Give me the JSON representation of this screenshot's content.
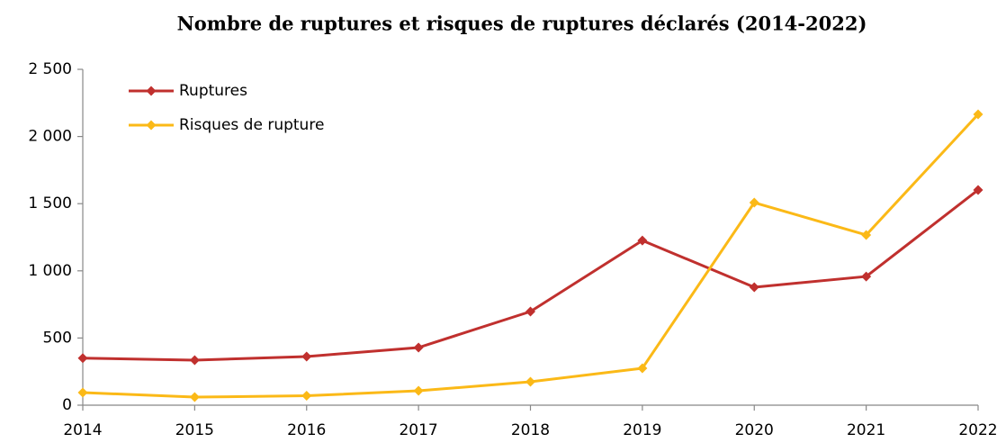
{
  "chart_data": {
    "type": "line",
    "title": "Nombre de ruptures et risques de ruptures déclarés (2014-2022)",
    "categories": [
      "2014",
      "2015",
      "2016",
      "2017",
      "2018",
      "2019",
      "2020",
      "2021",
      "2022"
    ],
    "series": [
      {
        "name": "Ruptures",
        "color": "#c0302e",
        "values": [
          350,
          335,
          362,
          429,
          697,
          1226,
          878,
          958,
          1602
        ]
      },
      {
        "name": "Risques de rupture",
        "color": "#fbb917",
        "values": [
          94,
          60,
          70,
          107,
          174,
          275,
          1508,
          1267,
          2165
        ]
      }
    ],
    "ylim": [
      0,
      2500
    ],
    "yticks": [
      0,
      500,
      {
        "value": 1000,
        "label": "1 000"
      },
      {
        "value": 1500,
        "label": "1 500"
      },
      {
        "value": 2000,
        "label": "2 000"
      },
      {
        "value": 2500,
        "label": "2 500"
      }
    ],
    "grid": false,
    "legend": "top-left"
  }
}
